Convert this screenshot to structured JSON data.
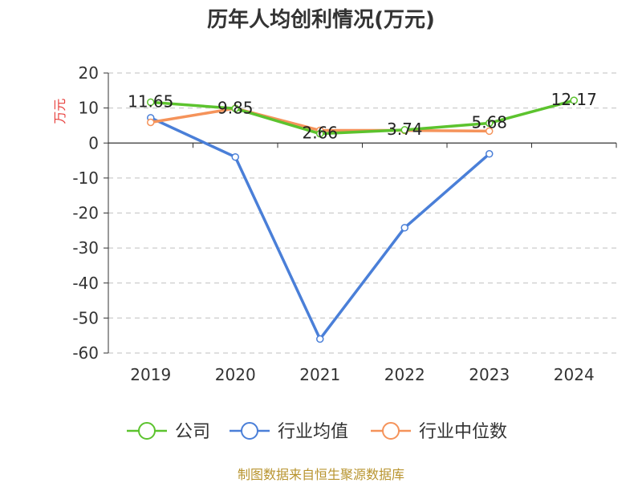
{
  "chart_data": {
    "type": "line",
    "title": "历年人均创利情况(万元)",
    "ylabel": "万元",
    "xlabel": "",
    "categories": [
      "2019",
      "2020",
      "2021",
      "2022",
      "2023",
      "2024"
    ],
    "ylim": [
      -60,
      20
    ],
    "yticks": [
      20,
      10,
      0,
      -10,
      -20,
      -30,
      -40,
      -50,
      -60
    ],
    "grid": true,
    "legend_position": "bottom",
    "series": [
      {
        "name": "公司",
        "color": "#5cc32e",
        "values": [
          11.65,
          9.85,
          2.66,
          3.74,
          5.68,
          12.17
        ],
        "labels": [
          "11.65",
          "9.85",
          "2.66",
          "3.74",
          "5.68",
          "12.17"
        ]
      },
      {
        "name": "行业均值",
        "color": "#4a7fd8",
        "values": [
          7.2,
          -4.0,
          -56.0,
          -24.2,
          -3.1,
          null
        ]
      },
      {
        "name": "行业中位数",
        "color": "#f5935a",
        "values": [
          5.9,
          9.9,
          3.6,
          3.6,
          3.4,
          null
        ]
      }
    ]
  },
  "source": "制图数据来自恒生聚源数据库"
}
